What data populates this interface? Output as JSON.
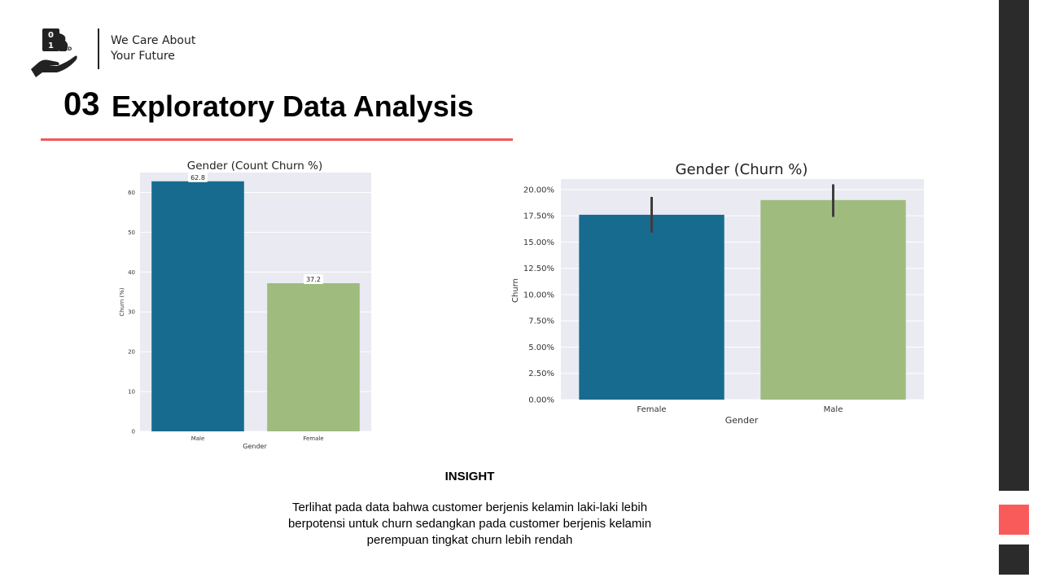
{
  "header": {
    "tagline_line1": "We Care About",
    "tagline_line2": "Your Future",
    "section_number": "03",
    "section_title": "Exploratory Data Analysis"
  },
  "colors": {
    "accent_red": "#f05a5a",
    "side_dark": "#2b2b2b",
    "bar_blue": "#176b8f",
    "bar_green": "#9fbb7e",
    "plot_bg": "#eaeaf2"
  },
  "icons": {
    "logo": "hand-holding-binary-b-logo-icon"
  },
  "chart_data": [
    {
      "type": "bar",
      "title": "Gender (Count Churn %)",
      "xlabel": "Gender",
      "ylabel": "Churn (%)",
      "categories": [
        "Male",
        "Female"
      ],
      "values": [
        62.8,
        37.2
      ],
      "data_labels": [
        "62.8",
        "37.2"
      ],
      "ylim": [
        0,
        65
      ],
      "yticks": [
        0,
        10,
        20,
        30,
        40,
        50,
        60
      ],
      "ytick_labels": [
        "0",
        "10",
        "20",
        "30",
        "40",
        "50",
        "60"
      ],
      "grid": true
    },
    {
      "type": "bar",
      "title": "Gender (Churn %)",
      "xlabel": "Gender",
      "ylabel": "Churn",
      "categories": [
        "Female",
        "Male"
      ],
      "values": [
        0.176,
        0.19
      ],
      "error_bars": [
        [
          0.159,
          0.193
        ],
        [
          0.174,
          0.205
        ]
      ],
      "ylim": [
        0,
        0.21
      ],
      "yticks": [
        0,
        0.025,
        0.05,
        0.075,
        0.1,
        0.125,
        0.15,
        0.175,
        0.2
      ],
      "ytick_labels": [
        "0.00%",
        "2.50%",
        "5.00%",
        "7.50%",
        "10.00%",
        "12.50%",
        "15.00%",
        "17.50%",
        "20.00%"
      ],
      "grid": true
    }
  ],
  "insight": {
    "heading": "INSIGHT",
    "line1": "Terlihat pada data bahwa customer berjenis kelamin laki-laki lebih",
    "line2": "berpotensi untuk churn  sedangkan pada customer berjenis kelamin",
    "line3": "perempuan tingkat churn  lebih rendah"
  }
}
